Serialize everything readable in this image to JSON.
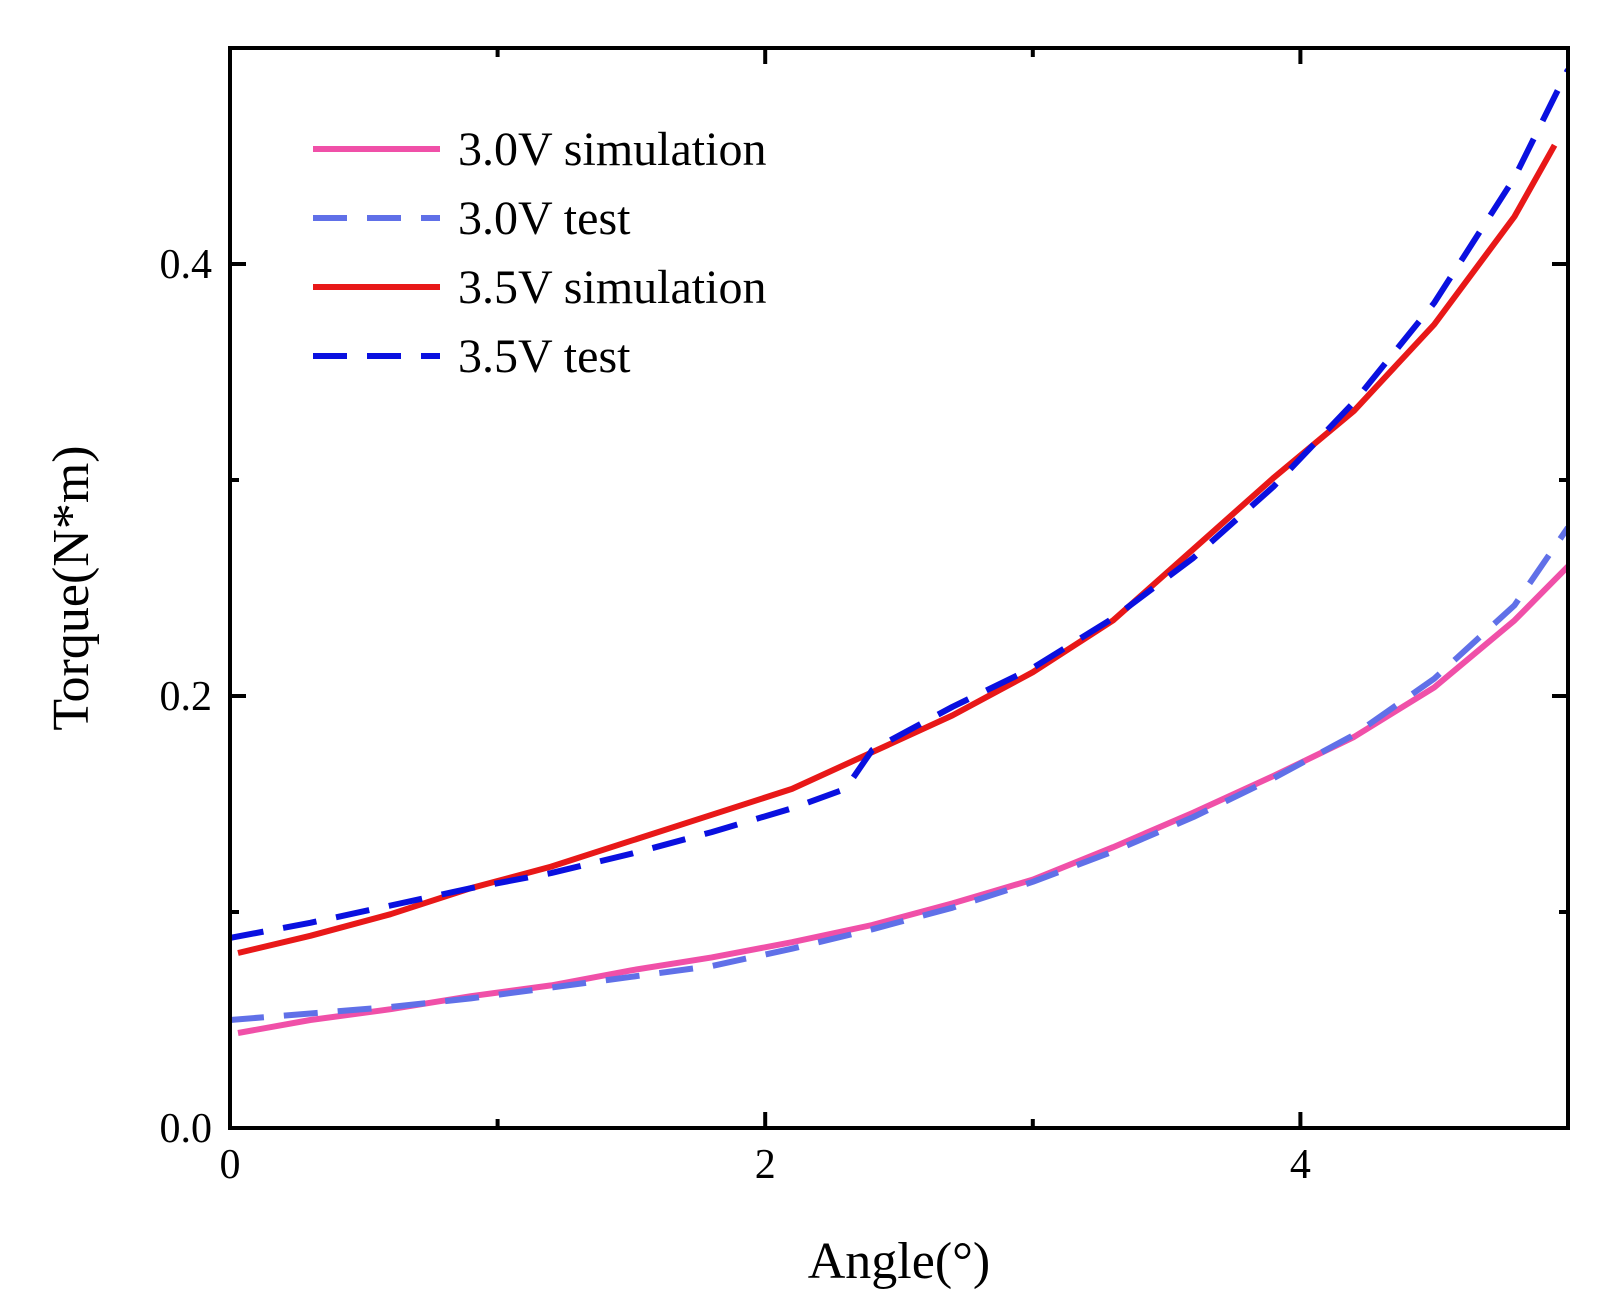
{
  "chart_data": {
    "type": "line",
    "title": "",
    "xlabel": "Angle(°)",
    "ylabel": "Torque(N*m)",
    "xlim": [
      0,
      5
    ],
    "ylim": [
      0,
      0.5
    ],
    "x_ticks": [
      0,
      2,
      4
    ],
    "x_tick_labels": [
      "0",
      "2",
      "4"
    ],
    "x_minor_ticks": [
      1,
      3
    ],
    "y_ticks": [
      0,
      0.2,
      0.4
    ],
    "y_tick_labels": [
      "0.0",
      "0.2",
      "0.4"
    ],
    "y_minor_ticks": [
      0.1,
      0.3
    ],
    "grid": false,
    "legend_position": "top-left",
    "series": [
      {
        "name": "3.0V simulation",
        "color": "#f050a8",
        "style": "solid",
        "x": [
          0.03,
          0.3,
          0.6,
          0.9,
          1.2,
          1.5,
          1.8,
          2.1,
          2.4,
          2.7,
          3.0,
          3.3,
          3.6,
          3.9,
          4.2,
          4.5,
          4.8,
          5.0
        ],
        "y": [
          0.044,
          0.05,
          0.055,
          0.061,
          0.066,
          0.073,
          0.079,
          0.086,
          0.094,
          0.104,
          0.115,
          0.13,
          0.146,
          0.163,
          0.181,
          0.204,
          0.235,
          0.26
        ]
      },
      {
        "name": "3.0V test",
        "color": "#6070e8",
        "style": "dashed",
        "x": [
          0.0,
          0.3,
          0.6,
          0.9,
          1.2,
          1.5,
          1.8,
          2.1,
          2.4,
          2.7,
          3.0,
          3.3,
          3.6,
          3.9,
          4.2,
          4.5,
          4.8,
          5.0
        ],
        "y": [
          0.05,
          0.053,
          0.056,
          0.06,
          0.065,
          0.07,
          0.075,
          0.083,
          0.092,
          0.102,
          0.114,
          0.128,
          0.144,
          0.162,
          0.182,
          0.208,
          0.242,
          0.278
        ]
      },
      {
        "name": "3.5V simulation",
        "color": "#e81818",
        "style": "solid",
        "x": [
          0.03,
          0.3,
          0.6,
          0.9,
          1.2,
          1.5,
          1.8,
          2.1,
          2.4,
          2.7,
          3.0,
          3.3,
          3.6,
          3.9,
          4.2,
          4.5,
          4.8,
          4.95
        ],
        "y": [
          0.081,
          0.089,
          0.099,
          0.111,
          0.121,
          0.133,
          0.145,
          0.157,
          0.174,
          0.191,
          0.211,
          0.235,
          0.268,
          0.301,
          0.332,
          0.372,
          0.422,
          0.455
        ]
      },
      {
        "name": "3.5V test",
        "color": "#0a10e0",
        "style": "dashed",
        "x": [
          0.0,
          0.3,
          0.6,
          0.9,
          1.2,
          1.5,
          1.8,
          2.1,
          2.3,
          2.4,
          2.7,
          3.0,
          3.3,
          3.6,
          3.9,
          4.2,
          4.5,
          4.8,
          5.0
        ],
        "y": [
          0.088,
          0.095,
          0.103,
          0.111,
          0.118,
          0.127,
          0.137,
          0.148,
          0.157,
          0.175,
          0.195,
          0.213,
          0.236,
          0.264,
          0.297,
          0.336,
          0.382,
          0.44,
          0.49
        ]
      }
    ]
  }
}
